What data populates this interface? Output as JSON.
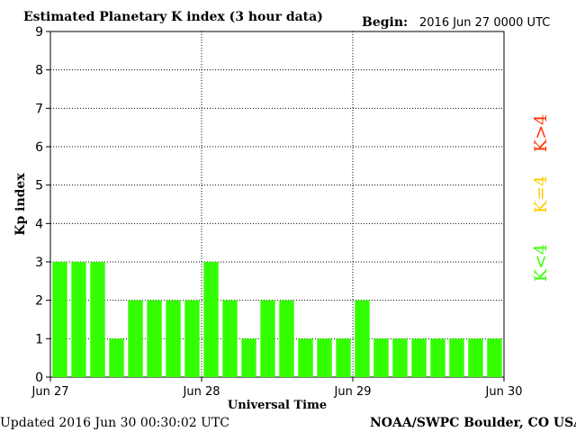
{
  "header": {
    "title": "Estimated Planetary K index (3 hour data)",
    "begin_label": "Begin:",
    "begin_value": "2016 Jun 27 0000 UTC"
  },
  "footer": {
    "updated": "Updated 2016 Jun 30 00:30:02 UTC",
    "credit": "NOAA/SWPC Boulder, CO USA"
  },
  "legend": {
    "high": {
      "label": "K>4",
      "color": "#ff3300"
    },
    "mid": {
      "label": "K=4",
      "color": "#ffcc00"
    },
    "low": {
      "label": "K<4",
      "color": "#33ff00"
    }
  },
  "chart_data": {
    "type": "bar",
    "title": "Estimated Planetary K index (3 hour data)",
    "xlabel": "Universal Time",
    "ylabel": "Kp index",
    "ylim": [
      0,
      9
    ],
    "yticks": [
      "0",
      "1",
      "2",
      "3",
      "4",
      "5",
      "6",
      "7",
      "8",
      "9"
    ],
    "xticks": [
      "Jun 27",
      "Jun 28",
      "Jun 29",
      "Jun 30"
    ],
    "grid": true,
    "bar_color": "#33ff00",
    "series": [
      {
        "values": [
          3,
          3,
          3,
          1,
          2,
          2,
          2,
          2,
          3,
          2,
          1,
          2,
          2,
          1,
          1,
          1,
          2,
          1,
          1,
          1,
          1,
          1,
          1,
          1
        ]
      }
    ]
  }
}
